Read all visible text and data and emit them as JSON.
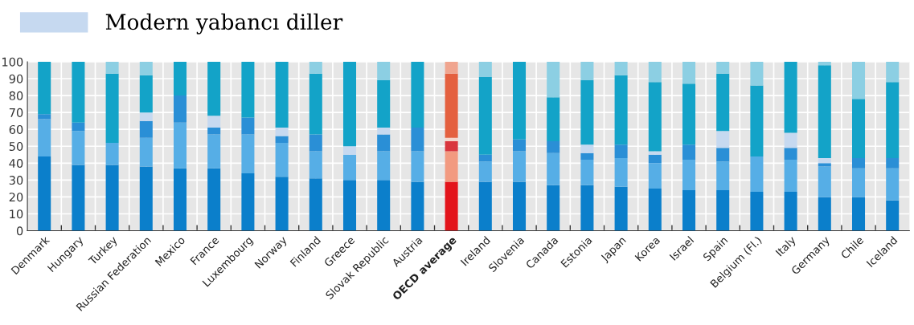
{
  "chart_data": {
    "type": "bar",
    "stacked": true,
    "legend": "top left",
    "grid": true,
    "categories": [
      "Denmark",
      "Hungary",
      "Turkey",
      "Russian Federation",
      "Mexico",
      "France",
      "Luxembourg",
      "Norway",
      "Finland",
      "Greece",
      "Slovak Republic",
      "Austria",
      "OECD average",
      "Ireland",
      "Slovenia",
      "Canada",
      "Estonia",
      "Japan",
      "Korea",
      "Israel",
      "Spain",
      "Belgium (Fl.)",
      "Italy",
      "Germany",
      "Chile",
      "Iceland"
    ],
    "ylim": [
      0,
      100
    ],
    "yticks": [
      0,
      10,
      20,
      30,
      40,
      50,
      60,
      70,
      80,
      90,
      100
    ],
    "series": [
      {
        "color": "#0b7fcb",
        "colors": [
          "#0b7fcb",
          "#0b7fcb",
          "#0b7fcb",
          "#0b7fcb",
          "#0b7fcb",
          "#0b7fcb",
          "#0b7fcb",
          "#0b7fcb",
          "#0b7fcb",
          "#0b7fcb",
          "#0b7fcb",
          "#0b7fcb",
          "#e3141b",
          "#0b7fcb",
          "#0b7fcb",
          "#0b7fcb",
          "#0b7fcb",
          "#0b7fcb",
          "#0b7fcb",
          "#0b7fcb",
          "#0b7fcb",
          "#0b7fcb",
          "#0b7fcb",
          "#0b7fcb",
          "#0b7fcb",
          "#0b7fcb"
        ],
        "values": [
          44,
          39,
          39,
          38,
          37,
          37,
          34,
          32,
          31,
          30,
          30,
          29,
          29,
          29,
          29,
          27,
          27,
          26,
          25,
          24,
          24,
          23,
          23,
          20,
          20,
          18
        ]
      },
      {
        "color": "#56aee6",
        "colors": [
          "#56aee6",
          "#56aee6",
          "#56aee6",
          "#56aee6",
          "#56aee6",
          "#56aee6",
          "#56aee6",
          "#56aee6",
          "#56aee6",
          "#56aee6",
          "#56aee6",
          "#56aee6",
          "#f29a80",
          "#56aee6",
          "#56aee6",
          "#56aee6",
          "#56aee6",
          "#56aee6",
          "#56aee6",
          "#56aee6",
          "#56aee6",
          "#56aee6",
          "#56aee6",
          "#56aee6",
          "#56aee6",
          "#56aee6"
        ],
        "values": [
          22,
          20,
          13,
          17,
          27,
          20,
          23,
          20,
          16,
          15,
          17,
          18,
          18,
          12,
          18,
          19,
          15,
          17,
          15,
          18,
          17,
          21,
          19,
          18,
          17,
          19
        ]
      },
      {
        "color": "#2a8fd6",
        "colors": [
          "#2a8fd6",
          "#2a8fd6",
          "#2a8fd6",
          "#2a8fd6",
          "#2a8fd6",
          "#2a8fd6",
          "#2a8fd6",
          "#2a8fd6",
          "#2a8fd6",
          "#2a8fd6",
          "#2a8fd6",
          "#2a8fd6",
          "#d9363e",
          "#2a8fd6",
          "#2a8fd6",
          "#2a8fd6",
          "#2a8fd6",
          "#2a8fd6",
          "#2a8fd6",
          "#2a8fd6",
          "#2a8fd6",
          "#2a8fd6",
          "#2a8fd6",
          "#2a8fd6",
          "#2a8fd6",
          "#2a8fd6"
        ],
        "values": [
          3,
          5,
          0,
          10,
          16,
          4,
          10,
          4,
          10,
          0,
          10,
          14,
          6,
          4,
          7,
          7,
          4,
          8,
          5,
          9,
          8,
          0,
          7,
          2,
          6,
          6
        ]
      },
      {
        "name": "Modern yabancı diller",
        "color": "#c6d9f0",
        "colors": [
          "#c6d9f0",
          "#c6d9f0",
          "#c6d9f0",
          "#c6d9f0",
          "#c6d9f0",
          "#c6d9f0",
          "#c6d9f0",
          "#c6d9f0",
          "#c6d9f0",
          "#c6d9f0",
          "#c6d9f0",
          "#c6d9f0",
          "#f5d6cc",
          "#c6d9f0",
          "#c6d9f0",
          "#c6d9f0",
          "#c6d9f0",
          "#c6d9f0",
          "#c6d9f0",
          "#c6d9f0",
          "#c6d9f0",
          "#c6d9f0",
          "#c6d9f0",
          "#c6d9f0",
          "#c6d9f0",
          "#c6d9f0"
        ],
        "values": [
          0,
          0,
          0,
          5,
          0,
          7,
          0,
          5,
          0,
          5,
          4,
          0,
          2,
          0,
          0,
          0,
          5,
          0,
          2,
          0,
          10,
          0,
          9,
          3,
          0,
          0
        ]
      },
      {
        "color": "#13a3c8",
        "colors": [
          "#13a3c8",
          "#13a3c8",
          "#13a3c8",
          "#13a3c8",
          "#13a3c8",
          "#13a3c8",
          "#13a3c8",
          "#13a3c8",
          "#13a3c8",
          "#13a3c8",
          "#13a3c8",
          "#13a3c8",
          "#e4603f",
          "#13a3c8",
          "#13a3c8",
          "#13a3c8",
          "#13a3c8",
          "#13a3c8",
          "#13a3c8",
          "#13a3c8",
          "#13a3c8",
          "#13a3c8",
          "#13a3c8",
          "#13a3c8",
          "#13a3c8",
          "#13a3c8"
        ],
        "values": [
          31,
          36,
          41,
          22,
          20,
          32,
          33,
          39,
          36,
          50,
          28,
          39,
          38,
          46,
          46,
          26,
          38,
          41,
          41,
          36,
          34,
          42,
          42,
          55,
          35,
          45
        ]
      },
      {
        "color": "#8ccfe3",
        "colors": [
          "#8ccfe3",
          "#8ccfe3",
          "#8ccfe3",
          "#8ccfe3",
          "#8ccfe3",
          "#8ccfe3",
          "#8ccfe3",
          "#8ccfe3",
          "#8ccfe3",
          "#8ccfe3",
          "#8ccfe3",
          "#8ccfe3",
          "#f0a58f",
          "#8ccfe3",
          "#8ccfe3",
          "#8ccfe3",
          "#8ccfe3",
          "#8ccfe3",
          "#8ccfe3",
          "#8ccfe3",
          "#8ccfe3",
          "#8ccfe3",
          "#8ccfe3",
          "#8ccfe3",
          "#8ccfe3",
          "#8ccfe3"
        ],
        "values": [
          0,
          0,
          7,
          8,
          0,
          0,
          0,
          0,
          7,
          0,
          11,
          0,
          7,
          9,
          0,
          21,
          11,
          8,
          12,
          13,
          7,
          14,
          0,
          2,
          22,
          12
        ]
      }
    ]
  }
}
